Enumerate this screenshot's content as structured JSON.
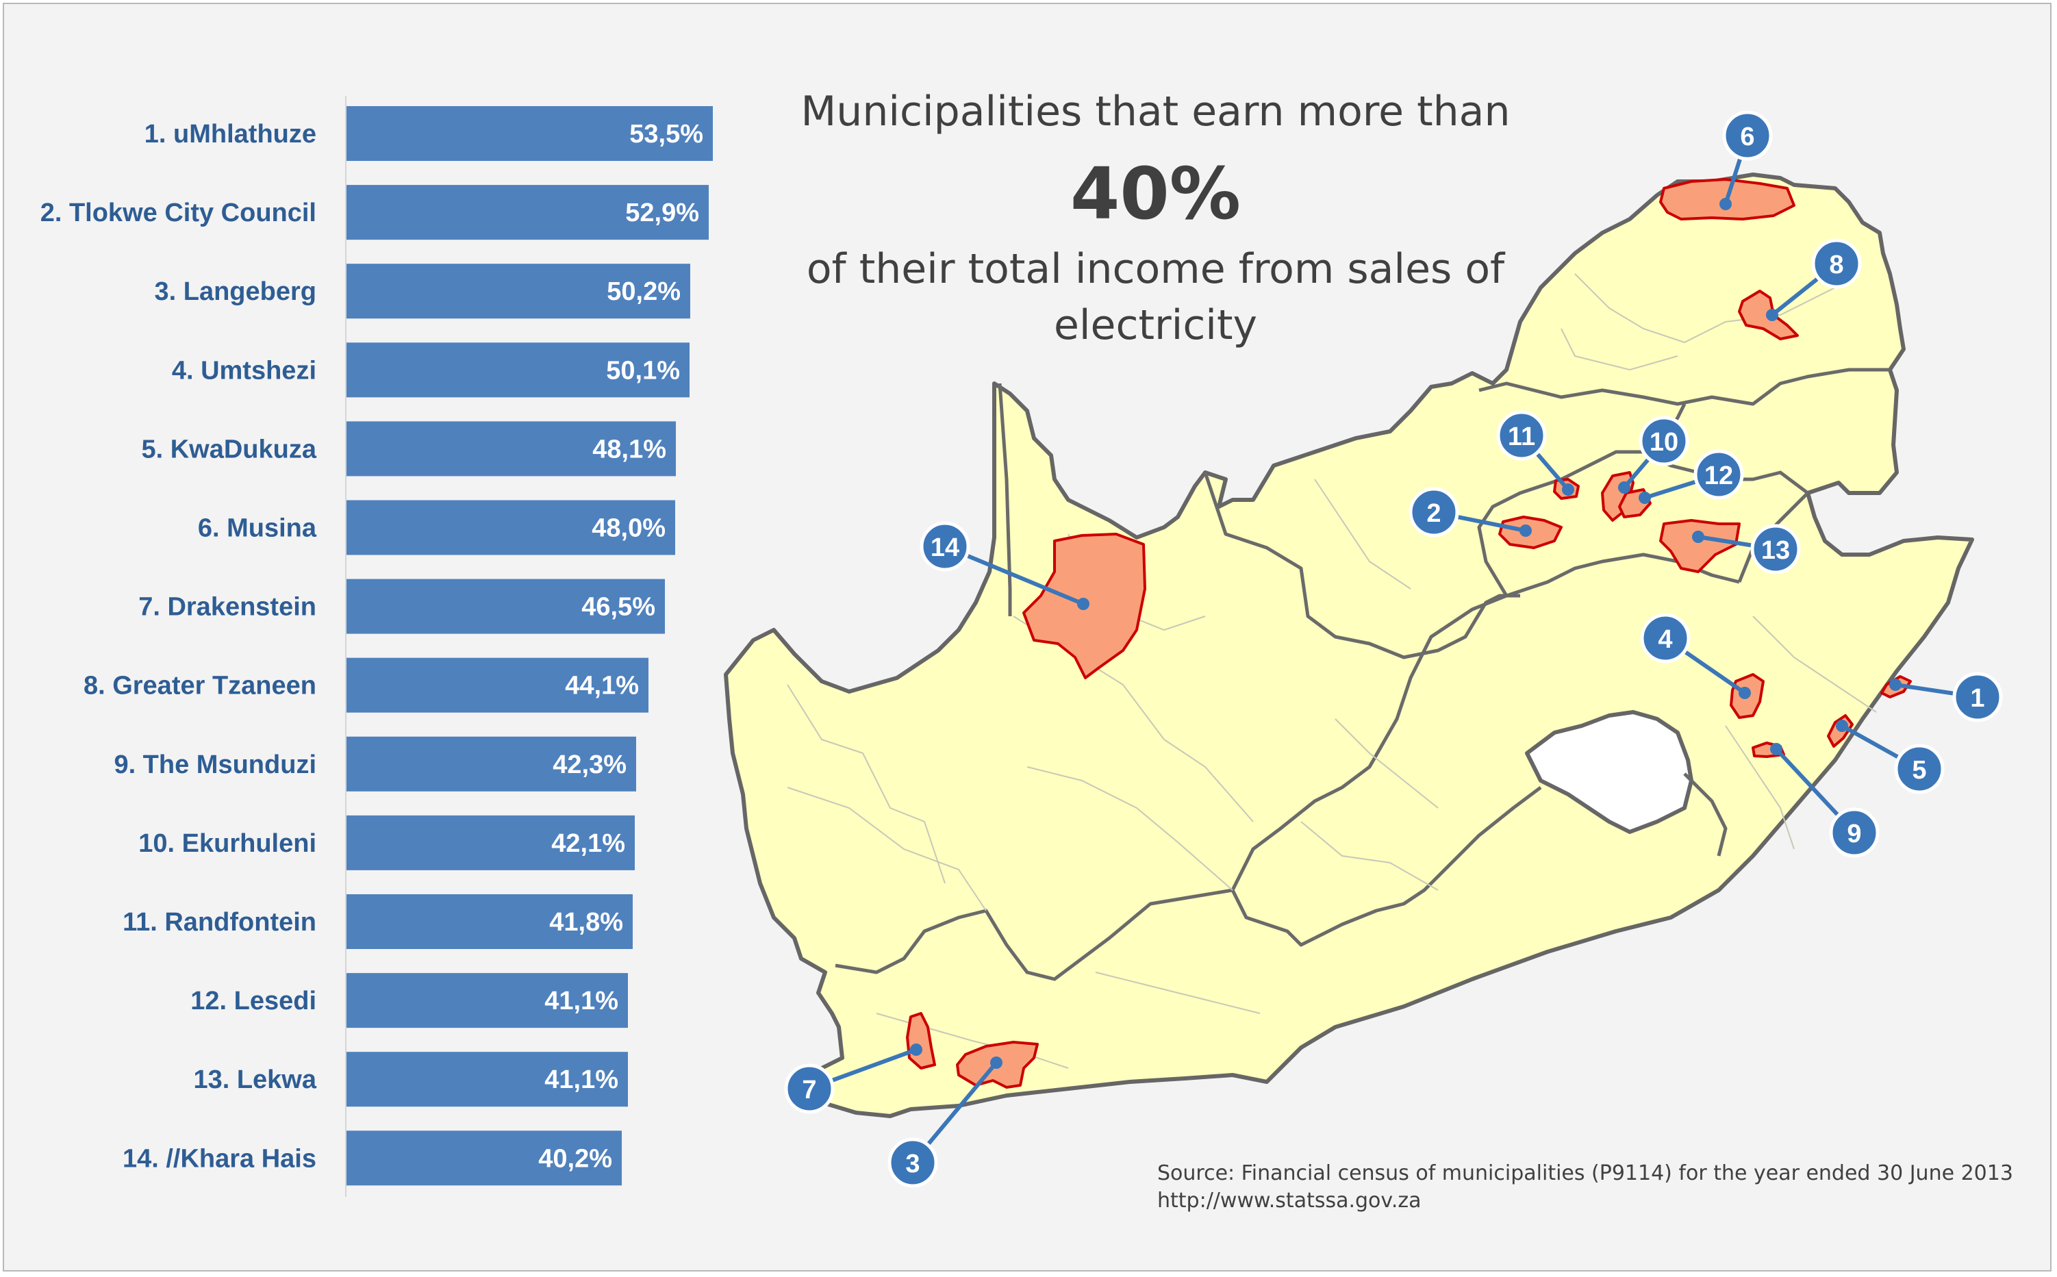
{
  "title": {
    "line1": "Municipalities that earn more than",
    "big": "40%",
    "line2": "of their total income from sales of",
    "line3": "electricity"
  },
  "chart_data": {
    "type": "bar",
    "orientation": "horizontal",
    "categories": [
      "1. uMhlathuze",
      "2. Tlokwe City Council",
      "3. Langeberg",
      "4. Umtshezi",
      "5. KwaDukuza",
      "6. Musina",
      "7. Drakenstein",
      "8. Greater Tzaneen",
      "9. The Msunduzi ",
      "10. Ekurhuleni",
      "11. Randfontein",
      "12. Lesedi",
      "13. Lekwa",
      "14. //Khara Hais"
    ],
    "values": [
      53.5,
      52.9,
      50.2,
      50.1,
      48.1,
      48.0,
      46.5,
      44.1,
      42.3,
      42.1,
      41.8,
      41.1,
      41.1,
      40.2
    ],
    "value_labels": [
      "53,5%",
      "52,9%",
      "50,2%",
      "50,1%",
      "48,1%",
      "48,0%",
      "46,5%",
      "44,1%",
      "42,3%",
      "42,1%",
      "41,8%",
      "41,1%",
      "41,1%",
      "40,2%"
    ],
    "xlim": [
      0,
      53.5
    ],
    "bar_color": "#4f81bd",
    "label_color": "#2e5d94"
  },
  "map": {
    "land_color": "#ffffc0",
    "highlight_color": "#f9a07a",
    "highlight_border": "#cc0000",
    "callout_color": "#3b76b8",
    "callouts": [
      "1",
      "2",
      "3",
      "4",
      "5",
      "6",
      "7",
      "8",
      "9",
      "10",
      "11",
      "12",
      "13",
      "14"
    ]
  },
  "source": {
    "line1": "Source: Financial census of municipalities (P9114) for the year ended 30 June 2013",
    "line2": "http://www.statssa.gov.za"
  }
}
